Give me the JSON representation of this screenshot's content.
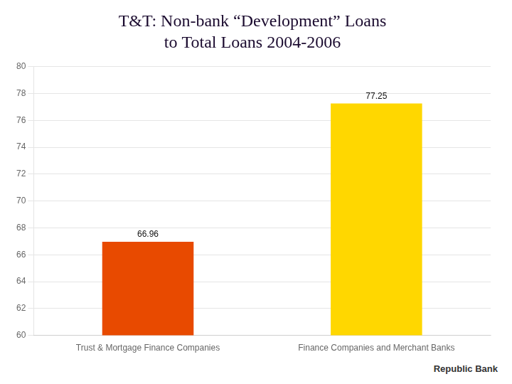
{
  "chart_data": {
    "type": "bar",
    "title": "T&T: Non-bank “Development” Loans",
    "subtitle": "to Total Loans 2004-2006",
    "categories": [
      "Trust & Mortgage Finance Companies",
      "Finance Companies and Merchant Banks"
    ],
    "values": [
      66.96,
      77.25
    ],
    "colors": [
      "#E84A00",
      "#FFD700"
    ],
    "ylim": [
      60,
      80
    ],
    "yticks": [
      60,
      62,
      64,
      66,
      68,
      70,
      72,
      74,
      76,
      78,
      80
    ],
    "grid": true,
    "data_labels": true,
    "annotations": [
      "Republic Bank"
    ]
  }
}
